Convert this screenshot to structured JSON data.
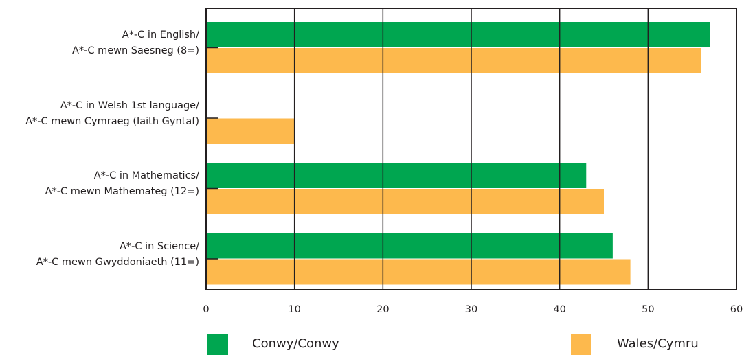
{
  "chart_data": {
    "type": "bar",
    "orientation": "horizontal",
    "categories": [
      [
        "A*-C in English/",
        "A*-C mewn Saesneg (8=)"
      ],
      [
        "A*-C in Welsh 1st language/",
        "A*-C mewn Cymraeg (Iaith Gyntaf)"
      ],
      [
        "A*-C in Mathematics/",
        "A*-C mewn Mathemateg (12=)"
      ],
      [
        "A*-C in Science/",
        "A*-C mewn Gwyddoniaeth (11=)"
      ]
    ],
    "series": [
      {
        "name": "Conwy/Conwy",
        "color": "#00a650",
        "values": [
          57,
          null,
          43,
          46
        ]
      },
      {
        "name": "Wales/Cymru",
        "color": "#fdb94d",
        "values": [
          56,
          10,
          45,
          48
        ]
      }
    ],
    "xlim": [
      0,
      60
    ],
    "xticks": [
      "0",
      "10",
      "20",
      "30",
      "40",
      "50",
      "60"
    ],
    "grid": true,
    "legend_position": "bottom",
    "title": "",
    "xlabel": "",
    "ylabel": ""
  }
}
